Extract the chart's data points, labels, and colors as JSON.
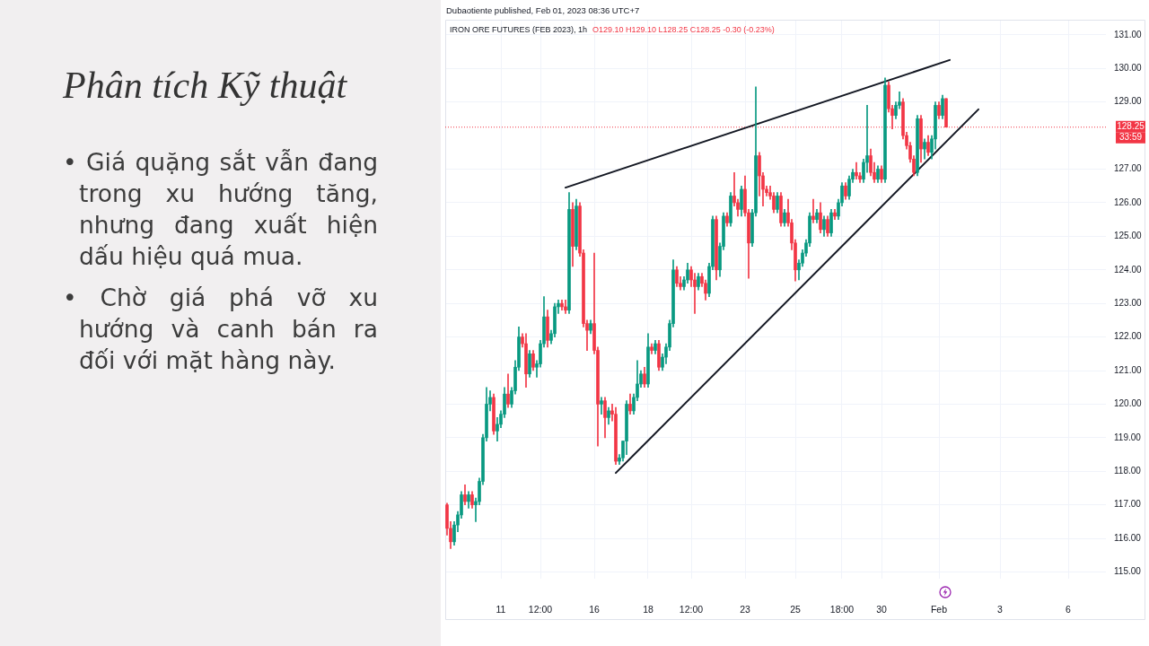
{
  "chart_data": {
    "type": "candlestick",
    "title": "Phân tích Kỹ thuật",
    "subtitle": "IRON ORE FUTURES (FEB 2023), 1h",
    "annotations": [
      "Dubaotiente published, Feb 01, 2023 08:36 UTC+7",
      "O129.10 H129.10 L128.25 C128.25 -0.30 (-0.23%)",
      "33:59",
      "• Giá quặng sắt vẫn đang trong xu hướng tăng, nhưng đang xuất hiện dấu hiệu quá mua.",
      "• Chờ giá phá vỡ xu hướng và canh bán ra đối với mặt hàng này."
    ],
    "categories": [
      null,
      null,
      null,
      null,
      null,
      null,
      null,
      null,
      null,
      null,
      null,
      null,
      null,
      null,
      null,
      "11",
      null,
      null,
      null,
      null,
      null,
      null,
      null,
      null,
      null,
      null,
      "12:00",
      null,
      null,
      null,
      null,
      null,
      null,
      null,
      null,
      null,
      null,
      null,
      null,
      null,
      null,
      "16",
      null,
      null,
      null,
      null,
      null,
      null,
      null,
      null,
      null,
      null,
      null,
      null,
      null,
      null,
      "18",
      null,
      null,
      null,
      null,
      null,
      null,
      null,
      null,
      null,
      null,
      null,
      "12:00",
      null,
      null,
      null,
      null,
      null,
      null,
      null,
      null,
      null,
      null,
      null,
      null,
      null,
      null,
      "23",
      null,
      null,
      null,
      null,
      null,
      null,
      null,
      null,
      null,
      null,
      null,
      null,
      null,
      "25",
      null,
      null,
      null,
      null,
      null,
      null,
      null,
      null,
      null,
      null,
      null,
      null,
      "18:00",
      null,
      null,
      null,
      null,
      null,
      null,
      null,
      null,
      null,
      null,
      "30",
      null,
      null,
      null,
      null,
      null,
      null,
      null,
      null,
      null,
      null,
      null,
      null,
      null,
      null,
      null,
      "Feb",
      null,
      null,
      null,
      null,
      null,
      null,
      null,
      null,
      null,
      null,
      null,
      null,
      null,
      null,
      null,
      null,
      "3",
      null,
      null,
      null,
      null,
      null,
      null,
      null,
      null,
      null,
      null,
      null,
      null,
      null,
      null,
      null,
      null,
      null,
      null,
      "6",
      null,
      null,
      null,
      null,
      null,
      null,
      null,
      null,
      null,
      null
    ],
    "ohlc": [
      [
        117.0,
        117.05,
        116.1,
        116.3
      ],
      [
        116.3,
        116.5,
        115.7,
        115.9
      ],
      [
        115.9,
        116.5,
        115.8,
        116.4
      ],
      [
        116.4,
        116.8,
        116.2,
        116.7
      ],
      [
        116.7,
        117.4,
        116.6,
        117.3
      ],
      [
        117.3,
        117.6,
        117.0,
        117.1
      ],
      [
        117.1,
        117.4,
        116.9,
        117.3
      ],
      [
        117.3,
        117.4,
        116.9,
        117.0
      ],
      [
        117.0,
        117.2,
        116.5,
        117.1
      ],
      [
        117.1,
        117.8,
        117.0,
        117.7
      ],
      [
        117.7,
        119.1,
        117.6,
        119.0
      ],
      [
        119.0,
        120.5,
        118.9,
        120.0
      ],
      [
        120.0,
        120.4,
        119.8,
        120.2
      ],
      [
        120.2,
        120.3,
        119.1,
        119.2
      ],
      [
        119.2,
        119.6,
        118.9,
        119.4
      ],
      [
        119.4,
        119.8,
        119.3,
        119.7
      ],
      [
        119.7,
        120.5,
        119.6,
        120.3
      ],
      [
        120.3,
        120.9,
        119.9,
        120.0
      ],
      [
        120.0,
        120.5,
        119.9,
        120.4
      ],
      [
        120.4,
        121.3,
        120.3,
        121.1
      ],
      [
        121.1,
        122.3,
        121.0,
        122.0
      ],
      [
        122.0,
        122.1,
        121.7,
        121.8
      ],
      [
        121.8,
        122.1,
        120.5,
        120.9
      ],
      [
        120.9,
        121.6,
        120.8,
        121.5
      ],
      [
        121.5,
        121.6,
        121.0,
        121.1
      ],
      [
        121.1,
        121.3,
        120.8,
        121.2
      ],
      [
        121.2,
        121.9,
        121.1,
        121.8
      ],
      [
        121.8,
        123.2,
        121.7,
        122.6
      ],
      [
        122.6,
        122.8,
        121.7,
        121.9
      ],
      [
        121.9,
        122.2,
        121.8,
        122.1
      ],
      [
        122.1,
        123.0,
        122.0,
        122.9
      ],
      [
        122.9,
        123.1,
        122.7,
        123.0
      ],
      [
        123.0,
        123.1,
        122.8,
        122.9
      ],
      [
        122.9,
        123.1,
        122.7,
        122.8
      ],
      [
        122.8,
        126.3,
        122.7,
        125.8
      ],
      [
        125.8,
        126.0,
        124.1,
        124.7
      ],
      [
        124.7,
        126.1,
        124.6,
        125.9
      ],
      [
        125.9,
        126.0,
        124.4,
        124.5
      ],
      [
        124.5,
        124.6,
        122.3,
        122.4
      ],
      [
        122.4,
        122.5,
        121.6,
        122.2
      ],
      [
        122.2,
        122.5,
        122.1,
        122.4
      ],
      [
        122.4,
        124.5,
        121.5,
        121.6
      ],
      [
        121.6,
        121.7,
        118.75,
        120.0
      ],
      [
        120.0,
        120.2,
        119.7,
        120.1
      ],
      [
        120.1,
        120.2,
        119.0,
        119.6
      ],
      [
        119.6,
        119.9,
        119.4,
        119.8
      ],
      [
        119.8,
        120.0,
        119.5,
        119.7
      ],
      [
        119.7,
        119.9,
        118.2,
        118.3
      ],
      [
        118.3,
        118.5,
        118.2,
        118.4
      ],
      [
        118.4,
        118.9,
        118.3,
        118.9
      ],
      [
        118.9,
        120.1,
        118.5,
        120.0
      ],
      [
        120.0,
        120.3,
        119.7,
        119.8
      ],
      [
        119.8,
        120.3,
        119.7,
        120.2
      ],
      [
        120.2,
        121.3,
        120.1,
        120.6
      ],
      [
        120.6,
        121.0,
        120.5,
        120.9
      ],
      [
        120.9,
        121.1,
        120.5,
        120.6
      ],
      [
        120.6,
        122.1,
        120.5,
        121.7
      ],
      [
        121.7,
        121.8,
        121.5,
        121.6
      ],
      [
        121.6,
        121.9,
        121.5,
        121.8
      ],
      [
        121.8,
        121.9,
        121.0,
        121.1
      ],
      [
        121.1,
        121.5,
        121.0,
        121.4
      ],
      [
        121.4,
        121.8,
        121.2,
        121.7
      ],
      [
        121.7,
        122.5,
        121.6,
        122.4
      ],
      [
        122.4,
        124.3,
        122.3,
        124.0
      ],
      [
        124.0,
        124.1,
        123.5,
        123.6
      ],
      [
        123.6,
        123.8,
        123.4,
        123.5
      ],
      [
        123.5,
        123.8,
        123.4,
        123.7
      ],
      [
        123.7,
        124.2,
        123.6,
        124.0
      ],
      [
        124.0,
        124.1,
        123.5,
        123.7
      ],
      [
        123.7,
        123.9,
        122.7,
        123.5
      ],
      [
        123.5,
        123.9,
        123.4,
        123.8
      ],
      [
        123.8,
        123.9,
        123.5,
        123.6
      ],
      [
        123.6,
        123.7,
        123.1,
        123.3
      ],
      [
        123.3,
        124.2,
        123.2,
        124.1
      ],
      [
        124.1,
        125.6,
        124.0,
        125.5
      ],
      [
        125.5,
        125.6,
        123.7,
        124.0
      ],
      [
        124.0,
        124.8,
        123.8,
        124.7
      ],
      [
        124.7,
        125.7,
        124.6,
        125.6
      ],
      [
        125.6,
        125.7,
        125.3,
        125.4
      ],
      [
        125.4,
        126.3,
        125.3,
        126.2
      ],
      [
        126.2,
        126.9,
        125.9,
        126.0
      ],
      [
        126.0,
        126.1,
        125.6,
        125.8
      ],
      [
        125.8,
        126.5,
        125.6,
        126.4
      ],
      [
        126.4,
        126.8,
        125.6,
        125.7
      ],
      [
        125.7,
        125.8,
        123.75,
        124.8
      ],
      [
        124.8,
        125.8,
        124.7,
        125.7
      ],
      [
        125.7,
        129.45,
        125.6,
        127.4
      ],
      [
        127.4,
        127.5,
        126.2,
        126.8
      ],
      [
        126.8,
        126.9,
        125.9,
        126.4
      ],
      [
        126.4,
        126.5,
        126.2,
        126.3
      ],
      [
        126.3,
        126.5,
        126.1,
        126.2
      ],
      [
        126.2,
        126.3,
        125.7,
        125.8
      ],
      [
        125.8,
        126.3,
        125.7,
        126.2
      ],
      [
        126.2,
        126.3,
        125.3,
        125.4
      ],
      [
        125.4,
        125.8,
        125.3,
        125.7
      ],
      [
        125.7,
        126.1,
        125.3,
        125.4
      ],
      [
        125.4,
        125.5,
        124.6,
        124.8
      ],
      [
        124.8,
        124.9,
        123.67,
        124.0
      ],
      [
        124.0,
        124.3,
        123.7,
        124.2
      ],
      [
        124.2,
        124.6,
        124.1,
        124.5
      ],
      [
        124.5,
        124.9,
        124.4,
        124.8
      ],
      [
        124.8,
        125.7,
        124.7,
        125.6
      ],
      [
        125.6,
        126.1,
        125.4,
        125.5
      ],
      [
        125.5,
        125.8,
        125.4,
        125.7
      ],
      [
        125.7,
        126.0,
        125.1,
        125.2
      ],
      [
        125.2,
        125.6,
        125.0,
        125.5
      ],
      [
        125.5,
        125.6,
        125.0,
        125.1
      ],
      [
        125.1,
        125.8,
        125.0,
        125.7
      ],
      [
        125.7,
        125.8,
        125.5,
        125.6
      ],
      [
        125.6,
        126.1,
        125.5,
        126.0
      ],
      [
        126.0,
        126.6,
        125.9,
        126.5
      ],
      [
        126.5,
        126.6,
        126.1,
        126.2
      ],
      [
        126.2,
        126.8,
        126.1,
        126.7
      ],
      [
        126.7,
        127.0,
        126.6,
        126.9
      ],
      [
        126.9,
        127.2,
        126.7,
        126.8
      ],
      [
        126.8,
        126.9,
        126.6,
        126.7
      ],
      [
        126.7,
        127.3,
        126.6,
        127.2
      ],
      [
        127.2,
        128.9,
        126.9,
        127.4
      ],
      [
        127.4,
        127.6,
        126.8,
        126.9
      ],
      [
        126.9,
        127.2,
        126.6,
        126.7
      ],
      [
        126.7,
        127.1,
        126.6,
        127.0
      ],
      [
        127.0,
        127.1,
        126.6,
        126.7
      ],
      [
        126.7,
        129.72,
        126.6,
        129.5
      ],
      [
        129.5,
        129.6,
        128.7,
        128.8
      ],
      [
        128.8,
        128.9,
        128.2,
        128.6
      ],
      [
        128.6,
        129.0,
        128.5,
        128.9
      ],
      [
        128.9,
        129.3,
        128.8,
        129.0
      ],
      [
        129.0,
        129.1,
        127.9,
        128.0
      ],
      [
        128.0,
        128.1,
        127.6,
        127.7
      ],
      [
        127.7,
        127.8,
        127.2,
        127.3
      ],
      [
        127.3,
        127.4,
        126.8,
        126.9
      ],
      [
        126.9,
        128.6,
        126.8,
        128.5
      ],
      [
        128.5,
        128.6,
        127.2,
        127.6
      ],
      [
        127.6,
        127.9,
        127.3,
        127.8
      ],
      [
        127.8,
        128.0,
        127.4,
        127.5
      ],
      [
        127.5,
        128.0,
        127.3,
        127.9
      ],
      [
        127.9,
        129.0,
        127.6,
        128.9
      ],
      [
        128.9,
        129.0,
        128.5,
        128.6
      ],
      [
        128.6,
        129.2,
        128.5,
        129.1
      ],
      [
        129.1,
        129.1,
        128.25,
        128.25
      ],
      null,
      null,
      null,
      null,
      null,
      null,
      null,
      null,
      null,
      null,
      null,
      null,
      null,
      null,
      null,
      null,
      null,
      null,
      null,
      null,
      null,
      null,
      null,
      null,
      null,
      null,
      null,
      null,
      null,
      null,
      null,
      null,
      null,
      null,
      null,
      null,
      null,
      null,
      null,
      null,
      null,
      null,
      null,
      null
    ],
    "colors": [
      "#f23645",
      "#f23645",
      "#089981",
      "#089981",
      "#089981",
      "#f23645",
      "#089981",
      "#f23645",
      "#089981",
      "#089981",
      "#089981",
      "#089981",
      "#089981",
      "#f23645",
      "#089981",
      "#089981",
      "#089981",
      "#f23645",
      "#089981",
      "#089981",
      "#089981",
      "#f23645",
      "#f23645",
      "#089981",
      "#f23645",
      "#089981",
      "#089981",
      "#089981",
      "#f23645",
      "#089981",
      "#089981",
      "#089981",
      "#f23645",
      "#f23645",
      "#089981",
      "#f23645",
      "#089981",
      "#f23645",
      "#f23645",
      "#f23645",
      "#089981",
      "#f23645",
      "#f23645",
      "#089981",
      "#f23645",
      "#089981",
      "#f23645",
      "#f23645",
      "#089981",
      "#089981",
      "#089981",
      "#f23645",
      "#089981",
      "#089981",
      "#089981",
      "#f23645",
      "#089981",
      "#f23645",
      "#089981",
      "#f23645",
      "#089981",
      "#089981",
      "#089981",
      "#089981",
      "#f23645",
      "#f23645",
      "#089981",
      "#089981",
      "#f23645",
      "#f23645",
      "#089981",
      "#f23645",
      "#f23645",
      "#089981",
      "#089981",
      "#f23645",
      "#089981",
      "#089981",
      "#f23645",
      "#089981",
      "#f23645",
      "#f23645",
      "#089981",
      "#f23645",
      "#f23645",
      "#089981",
      "#089981",
      "#f23645",
      "#f23645",
      "#f23645",
      "#f23645",
      "#f23645",
      "#089981",
      "#f23645",
      "#089981",
      "#f23645",
      "#f23645",
      "#f23645",
      "#089981",
      "#089981",
      "#089981",
      "#089981",
      "#f23645",
      "#089981",
      "#f23645",
      "#089981",
      "#f23645",
      "#089981",
      "#f23645",
      "#089981",
      "#089981",
      "#f23645",
      "#089981",
      "#089981",
      "#f23645",
      "#f23645",
      "#089981",
      "#089981",
      "#f23645",
      "#f23645",
      "#089981",
      "#f23645",
      "#089981",
      "#f23645",
      "#f23645",
      "#089981",
      "#089981",
      "#f23645",
      "#f23645",
      "#f23645",
      "#f23645",
      "#089981",
      "#f23645",
      "#089981",
      "#f23645",
      "#089981",
      "#089981",
      "#f23645",
      "#089981",
      "#f23645",
      null,
      null,
      null,
      null,
      null,
      null,
      null,
      null,
      null,
      null,
      null,
      null,
      null,
      null,
      null,
      null,
      null,
      null,
      null,
      null,
      null,
      null,
      null,
      null,
      null,
      null,
      null,
      null,
      null,
      null,
      null,
      null,
      null,
      null,
      null,
      null,
      null,
      null,
      null,
      null,
      null,
      null,
      null,
      null
    ],
    "series": [
      {
        "type": "line",
        "color": "#131722",
        "values": [
          null,
          null,
          null,
          null,
          null,
          null,
          null,
          null,
          null,
          null,
          null,
          null,
          null,
          null,
          null,
          null,
          null,
          null,
          null,
          null,
          null,
          null,
          null,
          null,
          null,
          null,
          null,
          null,
          null,
          null,
          null,
          null,
          null,
          126.45,
          null,
          null,
          null,
          null,
          null,
          null,
          null,
          null,
          null,
          null,
          null,
          null,
          null,
          null,
          null,
          null,
          null,
          null,
          null,
          null,
          null,
          null,
          null,
          null,
          null,
          null,
          null,
          null,
          null,
          null,
          null,
          null,
          null,
          null,
          null,
          null,
          null,
          null,
          null,
          null,
          null,
          null,
          null,
          null,
          null,
          null,
          null,
          null,
          null,
          null,
          null,
          null,
          null,
          null,
          null,
          null,
          null,
          null,
          null,
          null,
          null,
          null,
          null,
          null,
          null,
          null,
          null,
          null,
          null,
          null,
          null,
          null,
          null,
          null,
          null,
          null,
          null,
          null,
          null,
          null,
          null,
          null,
          null,
          null,
          null,
          null,
          null,
          null,
          null,
          null,
          null,
          null,
          null,
          null,
          null,
          null,
          null,
          null,
          null,
          null,
          null,
          null,
          null,
          null,
          null,
          null,
          130.25,
          null,
          null,
          null,
          null,
          null,
          null,
          null,
          null,
          null,
          null,
          null,
          null,
          null,
          null,
          null,
          null,
          null,
          null,
          null,
          null,
          null,
          null,
          null,
          null,
          null,
          null,
          null,
          null,
          null,
          null,
          null,
          null,
          null,
          null,
          null,
          null,
          null,
          null,
          null,
          null,
          null,
          null,
          null
        ]
      },
      {
        "type": "line",
        "color": "#131722",
        "values": [
          null,
          null,
          null,
          null,
          null,
          null,
          null,
          null,
          null,
          null,
          null,
          null,
          null,
          null,
          null,
          null,
          null,
          null,
          null,
          null,
          null,
          null,
          null,
          null,
          null,
          null,
          null,
          null,
          null,
          null,
          null,
          null,
          null,
          null,
          null,
          null,
          null,
          null,
          null,
          null,
          null,
          null,
          null,
          null,
          null,
          null,
          null,
          117.95,
          null,
          null,
          null,
          null,
          null,
          null,
          null,
          null,
          null,
          null,
          null,
          null,
          null,
          null,
          null,
          null,
          null,
          null,
          null,
          null,
          null,
          null,
          null,
          null,
          null,
          null,
          null,
          null,
          null,
          null,
          null,
          null,
          null,
          null,
          null,
          null,
          null,
          null,
          null,
          null,
          null,
          null,
          null,
          null,
          null,
          null,
          null,
          null,
          null,
          null,
          null,
          null,
          null,
          null,
          null,
          null,
          null,
          null,
          null,
          null,
          null,
          null,
          null,
          null,
          null,
          null,
          null,
          null,
          null,
          null,
          null,
          null,
          null,
          null,
          null,
          null,
          null,
          null,
          null,
          null,
          null,
          null,
          null,
          null,
          null,
          null,
          null,
          null,
          null,
          null,
          null,
          null,
          null,
          null,
          null,
          null,
          null,
          null,
          null,
          null,
          128.78,
          null,
          null,
          null,
          null,
          null,
          null,
          null,
          null,
          null,
          null,
          null,
          null,
          null,
          null,
          null,
          null,
          null,
          null,
          null,
          null,
          null,
          null,
          null,
          null,
          null,
          null,
          null,
          null,
          null,
          null,
          null,
          null,
          null,
          null,
          null
        ]
      }
    ],
    "ylim": [
      114.8,
      131.45
    ],
    "yticks": [
      {
        "value": 115,
        "label": "115.00"
      },
      {
        "value": 116,
        "label": "116.00"
      },
      {
        "value": 117,
        "label": "117.00"
      },
      {
        "value": 118,
        "label": "118.00"
      },
      {
        "value": 119,
        "label": "119.00"
      },
      {
        "value": 120,
        "label": "120.00"
      },
      {
        "value": 121,
        "label": "121.00"
      },
      {
        "value": 122,
        "label": "122.00"
      },
      {
        "value": 123,
        "label": "123.00"
      },
      {
        "value": 124,
        "label": "124.00"
      },
      {
        "value": 125,
        "label": "125.00"
      },
      {
        "value": 126,
        "label": "126.00"
      },
      {
        "value": 127,
        "label": "127.00"
      },
      {
        "value": 129,
        "label": "129.00"
      },
      {
        "value": 130,
        "label": "130.00"
      },
      {
        "value": 131,
        "label": "131.00"
      }
    ],
    "ref_lines": [
      {
        "axis": "y",
        "value": 128.25,
        "label": "128.25",
        "color": "#f23645",
        "line_style": "dotted"
      }
    ],
    "grid": true
  }
}
